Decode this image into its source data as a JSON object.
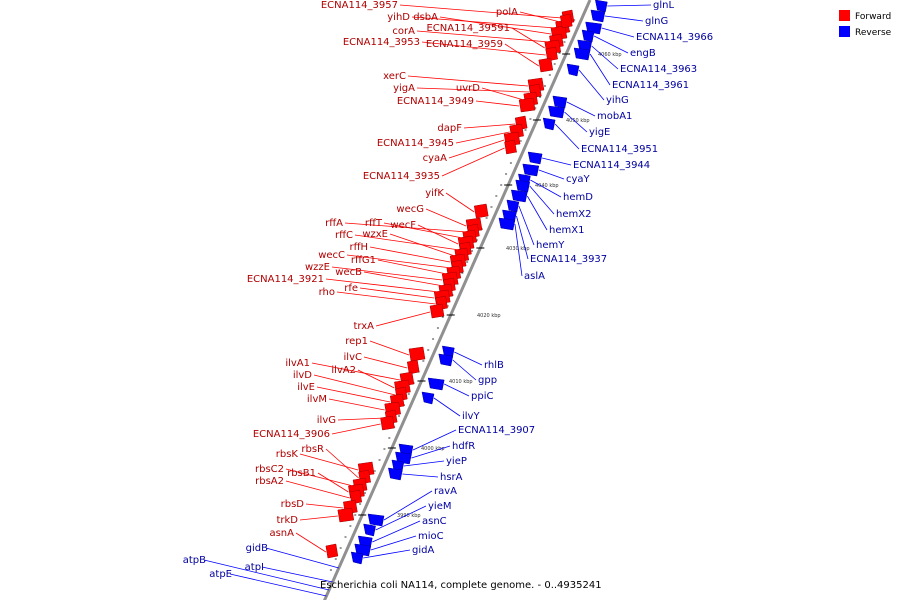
{
  "caption": "Escherichia coli NA114, complete genome. - 0..4935241",
  "colors": {
    "forward": "#ff0000",
    "reverse": "#0000ff",
    "backbone": "#909090"
  },
  "legend": [
    {
      "label": "Forward",
      "color": "#ff0000"
    },
    {
      "label": "Reverse",
      "color": "#0000ff"
    }
  ],
  "ticks": [
    "4060 kbp",
    "4050 kbp",
    "4040 kbp",
    "4030 kbp",
    "4020 kbp",
    "4010 kbp",
    "4000 kbp",
    "3990 kbp"
  ],
  "forward_genes": [
    "ECNA114_3957",
    "yihD",
    "dsbA",
    "polA",
    "corA",
    "ECNA114_39591",
    "ECNA114_3953",
    "ECNA114_3959",
    "xerC",
    "yigA",
    "uvrD",
    "ECNA114_3949",
    "dapF",
    "ECNA114_3945",
    "cyaA",
    "ECNA114_3935",
    "yifK",
    "wecG",
    "rffA",
    "rffT",
    "wecF",
    "rffC",
    "wzxE",
    "rffH",
    "wecC",
    "rffG1",
    "wzzE",
    "wecB",
    "ECNA114_3921",
    "rfe",
    "rho",
    "trxA",
    "rep1",
    "ilvC",
    "ilvA1",
    "ilvA2",
    "ilvD",
    "ilvE",
    "ilvM",
    "ilvG",
    "ECNA114_3906",
    "rbsK",
    "rbsR",
    "rbsC2",
    "rbsB1",
    "rbsA2",
    "rbsD",
    "trkD",
    "asnA"
  ],
  "reverse_genes": [
    "glnL",
    "glnG",
    "ECNA114_3966",
    "engB",
    "ECNA114_3963",
    "ECNA114_3961",
    "yihG",
    "mobA1",
    "yigE",
    "ECNA114_3951",
    "ECNA114_3944",
    "cyaY",
    "hemD",
    "hemX2",
    "hemX1",
    "hemY",
    "ECNA114_3937",
    "aslA",
    "rhlB",
    "gpp",
    "ppiC",
    "ilvY",
    "ECNA114_3907",
    "hdfR",
    "yieP",
    "hsrA",
    "ravA",
    "yieM",
    "asnC",
    "mioC",
    "gidA",
    "gidB",
    "atpI",
    "atpB",
    "atpE"
  ]
}
